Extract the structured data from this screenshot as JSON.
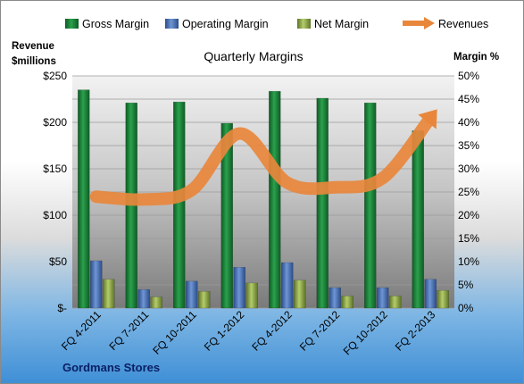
{
  "chart_data": {
    "type": "bar",
    "title": "Quarterly Margins",
    "footer": "Gordmans Stores",
    "categories": [
      "FQ 4-2011",
      "FQ 7-2011",
      "FQ 10-2011",
      "FQ 1-2012",
      "FQ 4-2012",
      "FQ 7-2012",
      "FQ 10-2012",
      "FQ 2-2013"
    ],
    "left_axis": {
      "title_line1": "Revenue",
      "title_line2": "$millions",
      "ylim": [
        0,
        250
      ],
      "ticks": [
        0,
        50,
        100,
        150,
        200,
        250
      ],
      "tick_labels": [
        "$-",
        "$50",
        "$100",
        "$150",
        "$200",
        "$250"
      ]
    },
    "right_axis": {
      "title": "Margin %",
      "ylim": [
        0,
        50
      ],
      "ticks": [
        0,
        5,
        10,
        15,
        20,
        25,
        30,
        35,
        40,
        45,
        50
      ],
      "tick_labels": [
        "0%",
        "5%",
        "10%",
        "15%",
        "20%",
        "25%",
        "30%",
        "35%",
        "40%",
        "45%",
        "50%"
      ]
    },
    "series": [
      {
        "name": "Gross Margin",
        "axis": "right",
        "kind": "bar",
        "color": "#1f8a3c",
        "values": [
          47.0,
          44.2,
          44.4,
          39.8,
          46.7,
          45.2,
          44.2,
          38.2
        ]
      },
      {
        "name": "Operating Margin",
        "axis": "right",
        "kind": "bar",
        "color": "#4a72b8",
        "values": [
          10.2,
          4.0,
          5.8,
          8.8,
          9.8,
          4.4,
          4.4,
          6.2
        ]
      },
      {
        "name": "Net Margin",
        "axis": "right",
        "kind": "bar",
        "color": "#8fa84a",
        "values": [
          6.2,
          2.4,
          3.6,
          5.4,
          6.0,
          2.6,
          2.6,
          3.8
        ]
      },
      {
        "name": "Revenues",
        "axis": "left",
        "kind": "line",
        "color": "#e8873c",
        "values": [
          120,
          117,
          127,
          188,
          135,
          130,
          140,
          205
        ]
      }
    ],
    "grid": true,
    "legend_position": "top"
  }
}
